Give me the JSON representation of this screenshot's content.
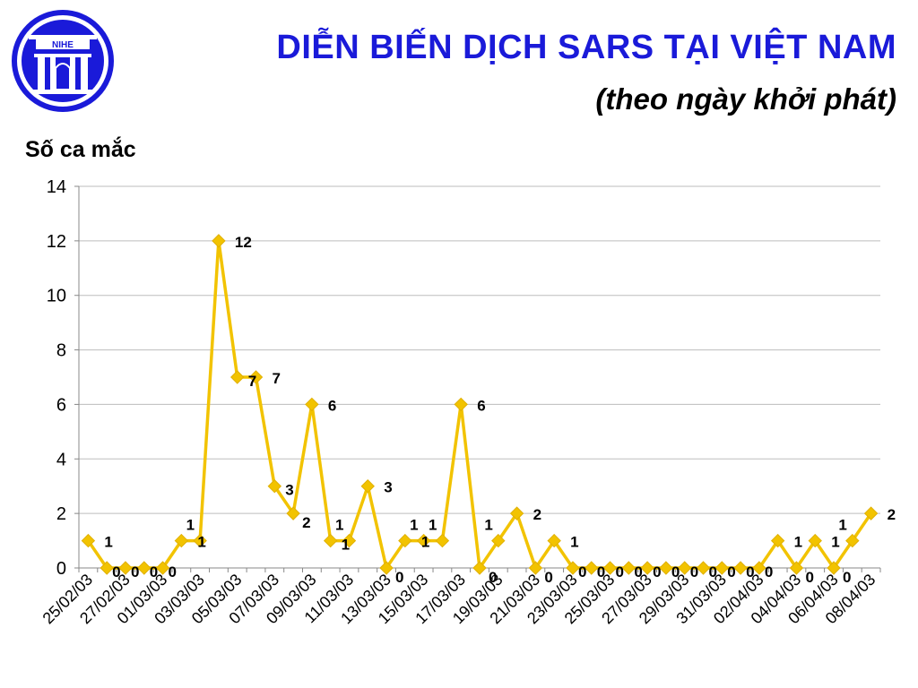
{
  "title": "DIỄN BIẾN DỊCH SARS TẠI VIỆT NAM",
  "subtitle": "(theo ngày khởi phát)",
  "logo_text": "NIHE",
  "colors": {
    "title": "#1a1ad9",
    "line": "#f2c300",
    "marker": "#f2c300",
    "logo": "#1a1ad9"
  },
  "chart_data": {
    "type": "line",
    "ylabel": "Số ca mắc",
    "xlabel": "",
    "ylim": [
      0,
      14
    ],
    "yticks": [
      "0",
      "2",
      "4",
      "6",
      "8",
      "10",
      "12",
      "14"
    ],
    "grid": true,
    "legend": "none",
    "x": [
      "25/02/03",
      "26/02/03",
      "27/02/03",
      "28/02/03",
      "01/03/03",
      "02/03/03",
      "03/03/03",
      "04/03/03",
      "05/03/03",
      "06/03/03",
      "07/03/03",
      "08/03/03",
      "09/03/03",
      "10/03/03",
      "11/03/03",
      "12/03/03",
      "13/03/03",
      "14/03/03",
      "15/03/03",
      "16/03/03",
      "17/03/03",
      "18/03/03",
      "19/03/03",
      "20/03/03",
      "21/03/03",
      "22/03/03",
      "23/03/03",
      "24/03/03",
      "25/03/03",
      "26/03/03",
      "27/03/03",
      "28/03/03",
      "29/03/03",
      "30/03/03",
      "31/03/03",
      "01/04/03",
      "02/04/03",
      "03/04/03",
      "04/04/03",
      "05/04/03",
      "06/04/03",
      "07/04/03",
      "08/04/03"
    ],
    "xtick_labels": [
      "25/02/03",
      "27/02/03",
      "01/03/03",
      "03/03/03",
      "05/03/03",
      "07/03/03",
      "09/03/03",
      "11/03/03",
      "13/03/03",
      "15/03/03",
      "17/03/03",
      "19/03/03",
      "21/03/03",
      "23/03/03",
      "25/03/03",
      "27/03/03",
      "29/03/03",
      "31/03/03",
      "02/04/03",
      "04/04/03",
      "06/04/03",
      "08/04/03"
    ],
    "values": [
      1,
      0,
      0,
      0,
      0,
      1,
      1,
      12,
      7,
      7,
      3,
      2,
      6,
      1,
      1,
      3,
      0,
      1,
      1,
      1,
      6,
      0,
      1,
      2,
      0,
      1,
      0,
      0,
      0,
      0,
      0,
      0,
      0,
      0,
      0,
      0,
      0,
      1,
      0,
      1,
      0,
      1,
      2
    ]
  }
}
